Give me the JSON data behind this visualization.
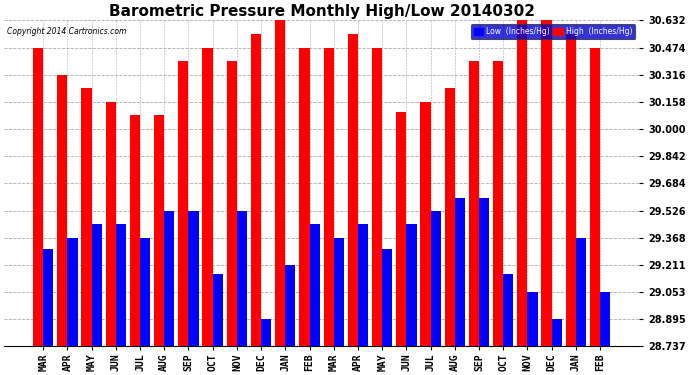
{
  "title": "Barometric Pressure Monthly High/Low 20140302",
  "copyright": "Copyright 2014 Cartronics.com",
  "categories": [
    "MAR",
    "APR",
    "MAY",
    "JUN",
    "JUL",
    "AUG",
    "SEP",
    "OCT",
    "NOV",
    "DEC",
    "JAN",
    "FEB",
    "MAR",
    "APR",
    "MAY",
    "JUN",
    "JUL",
    "AUG",
    "SEP",
    "OCT",
    "NOV",
    "DEC",
    "JAN",
    "FEB"
  ],
  "high_values": [
    30.474,
    30.316,
    30.237,
    30.158,
    30.079,
    30.079,
    30.395,
    30.474,
    30.395,
    30.553,
    30.632,
    30.474,
    30.474,
    30.553,
    30.474,
    30.1,
    30.158,
    30.237,
    30.395,
    30.395,
    30.632,
    30.632,
    30.553,
    30.474
  ],
  "low_values": [
    29.3,
    29.368,
    29.447,
    29.447,
    29.368,
    29.526,
    29.526,
    29.158,
    29.526,
    28.895,
    29.211,
    29.447,
    29.368,
    29.447,
    29.3,
    29.447,
    29.526,
    29.6,
    29.6,
    29.158,
    29.053,
    28.895,
    29.368,
    29.053
  ],
  "high_color": "#FF0000",
  "low_color": "#0000FF",
  "bg_color": "#FFFFFF",
  "plot_bg_color": "#FFFFFF",
  "grid_color": "#AAAAAA",
  "ymin": 28.737,
  "ylim": [
    28.737,
    30.632
  ],
  "yticks": [
    28.737,
    28.895,
    29.053,
    29.211,
    29.368,
    29.526,
    29.684,
    29.842,
    30.0,
    30.158,
    30.316,
    30.474,
    30.632
  ],
  "title_fontsize": 11,
  "tick_fontsize": 7,
  "legend_low_label": "Low  (Inches/Hg)",
  "legend_high_label": "High  (Inches/Hg)"
}
